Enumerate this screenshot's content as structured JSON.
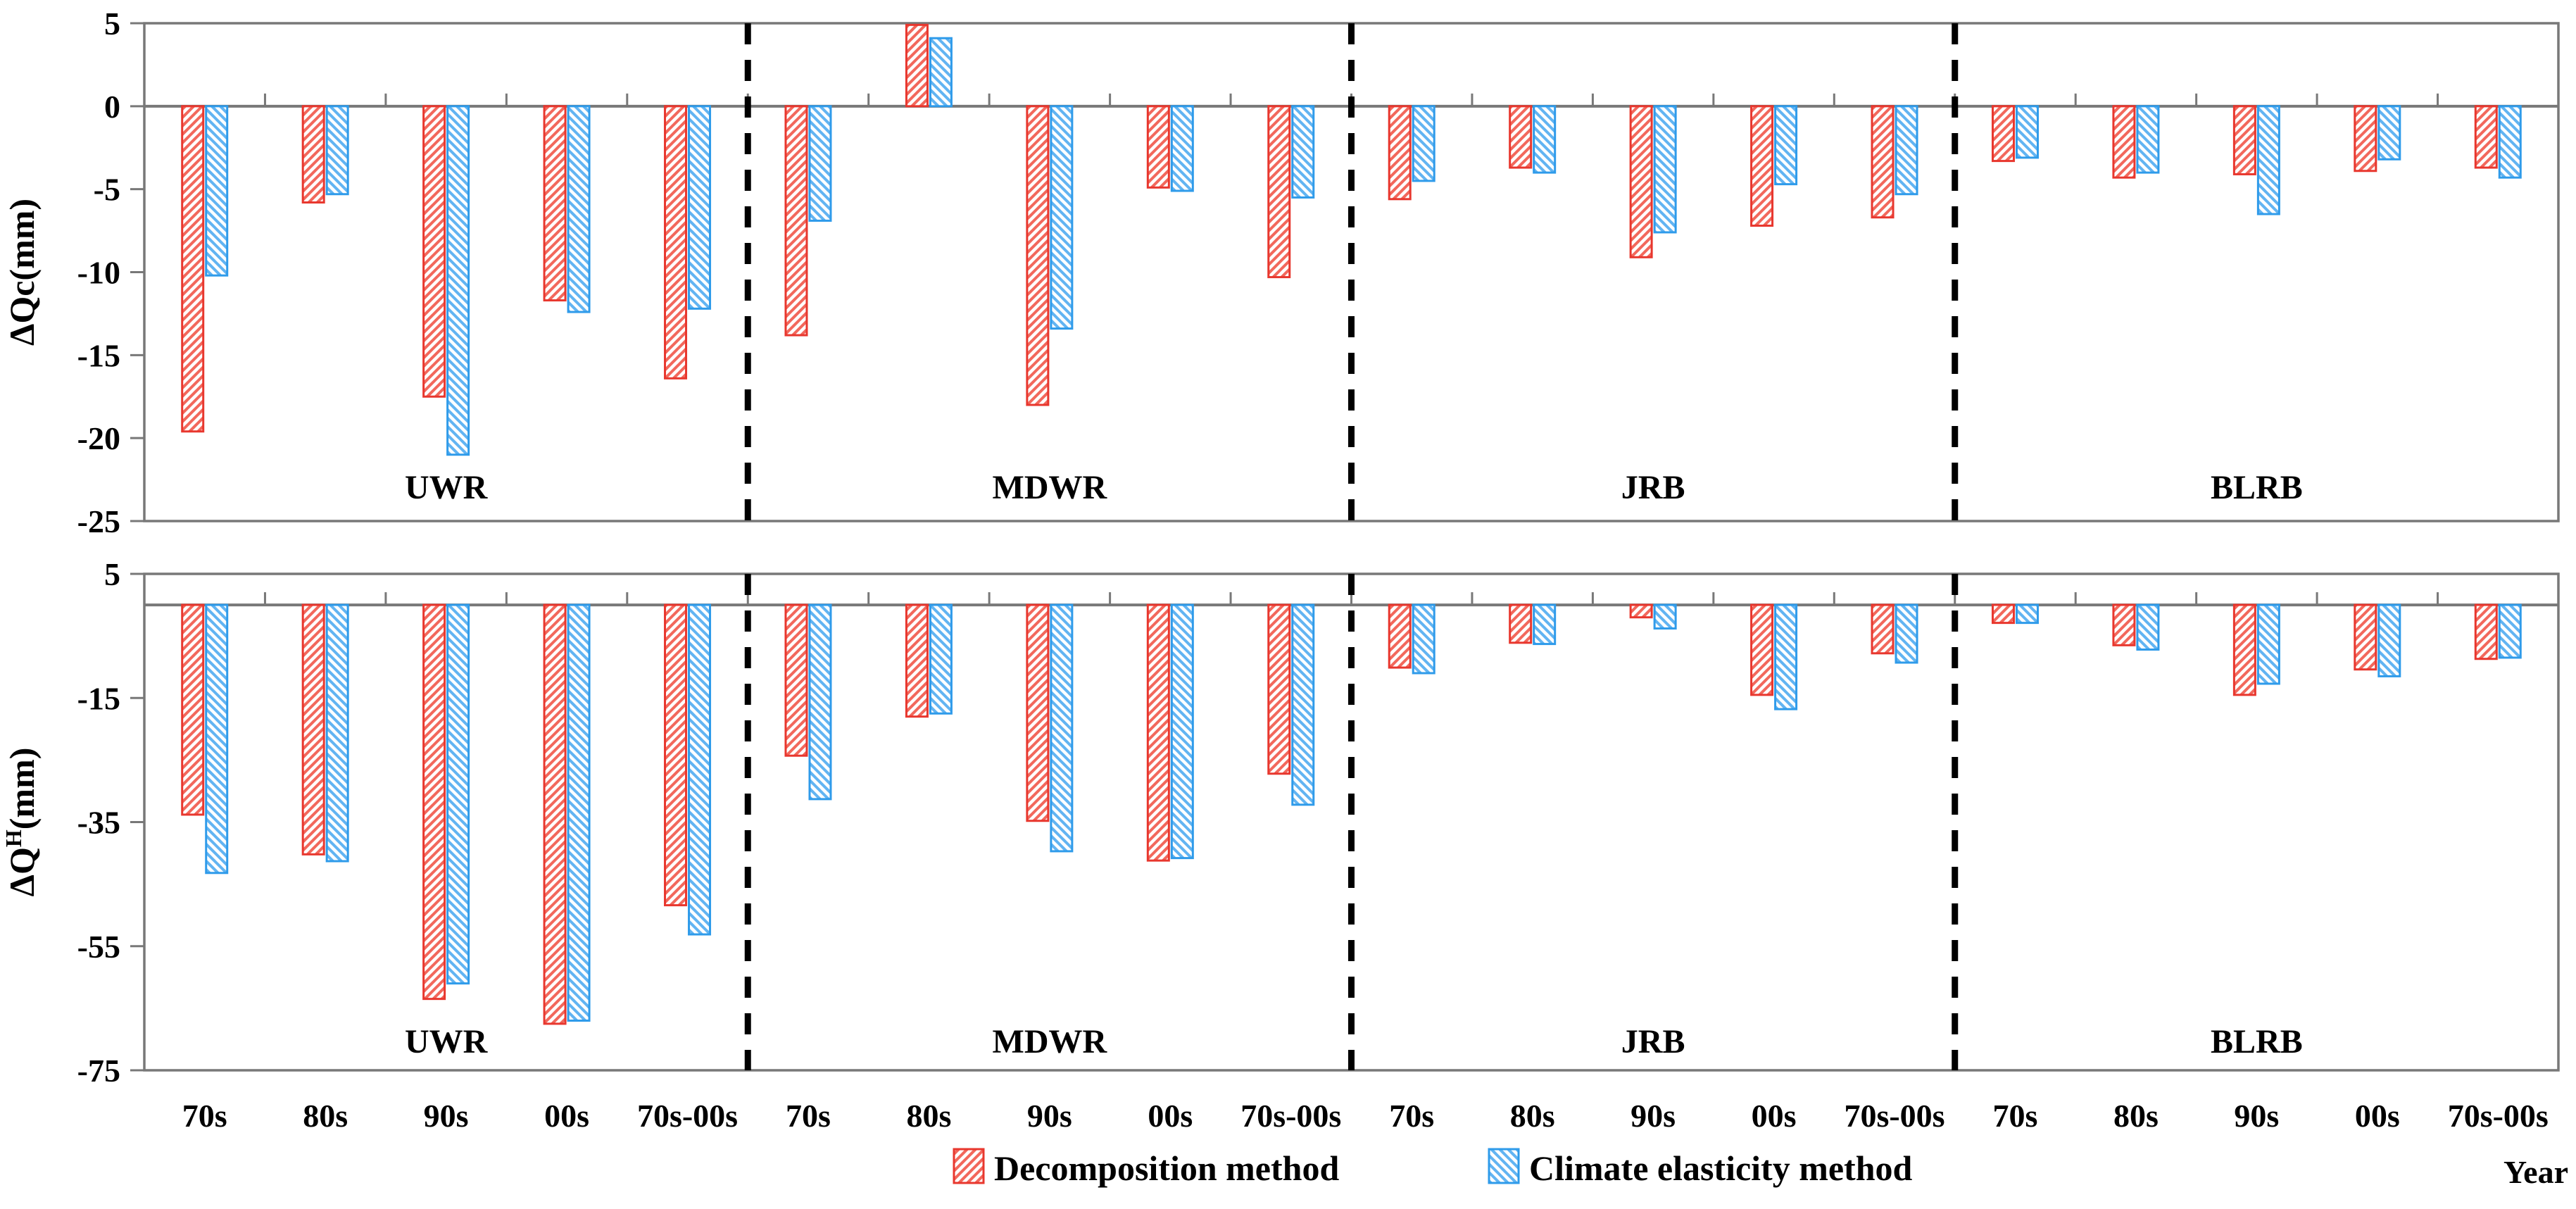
{
  "chart_data": {
    "type": "bar",
    "orientation": "vertical",
    "categories": [
      "70s",
      "80s",
      "90s",
      "00s",
      "70s-00s"
    ],
    "regions": [
      "UWR",
      "MDWR",
      "JRB",
      "BLRB"
    ],
    "series_names": [
      "Decomposition method",
      "Climate elasticity method"
    ],
    "xlabel": "Year",
    "grid": "off",
    "legend_position": "bottom-center",
    "panels": [
      {
        "id": "dQc",
        "ylabel": {
          "prefix": "ΔQc",
          "superscript": "",
          "suffix": "(mm)"
        },
        "ylim": [
          -25,
          5
        ],
        "yticks": [
          5,
          0,
          -5,
          -10,
          -15,
          -20,
          -25
        ],
        "series": [
          {
            "name": "Decomposition method",
            "values": {
              "UWR": [
                -19.6,
                -5.8,
                -17.5,
                -11.7,
                -16.4
              ],
              "MDWR": [
                -13.8,
                4.9,
                -18.0,
                -4.9,
                -10.3
              ],
              "JRB": [
                -5.6,
                -3.7,
                -9.1,
                -7.2,
                -6.7
              ],
              "BLRB": [
                -3.3,
                -4.3,
                -4.1,
                -3.9,
                -3.7
              ]
            }
          },
          {
            "name": "Climate elasticity method",
            "values": {
              "UWR": [
                -10.2,
                -5.3,
                -21.0,
                -12.4,
                -12.2
              ],
              "MDWR": [
                -6.9,
                4.1,
                -13.4,
                -5.1,
                -5.5
              ],
              "JRB": [
                -4.5,
                -4.0,
                -7.6,
                -4.7,
                -5.3
              ],
              "BLRB": [
                -3.1,
                -4.0,
                -6.5,
                -3.2,
                -4.3
              ]
            }
          }
        ]
      },
      {
        "id": "dQH",
        "ylabel": {
          "prefix": "ΔQ",
          "superscript": "H",
          "suffix": "(mm)"
        },
        "ylim": [
          -75,
          5
        ],
        "yticks": [
          5,
          -15,
          -35,
          -55,
          -75
        ],
        "series": [
          {
            "name": "Decomposition method",
            "values": {
              "UWR": [
                -33.8,
                -40.2,
                -63.5,
                -67.5,
                -48.4
              ],
              "MDWR": [
                -24.3,
                -18.0,
                -34.8,
                -41.2,
                -27.2
              ],
              "JRB": [
                -10.1,
                -6.1,
                -2.0,
                -14.5,
                -7.8
              ],
              "BLRB": [
                -2.9,
                -6.5,
                -14.5,
                -10.4,
                -8.7
              ]
            }
          },
          {
            "name": "Climate elasticity method",
            "values": {
              "UWR": [
                -43.2,
                -41.3,
                -61.0,
                -67.0,
                -53.1
              ],
              "MDWR": [
                -31.3,
                -17.5,
                -39.7,
                -40.8,
                -32.2
              ],
              "JRB": [
                -11.0,
                -6.3,
                -3.8,
                -16.8,
                -9.3
              ],
              "BLRB": [
                -2.9,
                -7.2,
                -12.7,
                -11.5,
                -8.5
              ]
            }
          }
        ]
      }
    ]
  },
  "styles": {
    "decomposition": {
      "fill": "#f2685c",
      "stroke": "#e8372e",
      "hatch_direction": "forward-diagonal"
    },
    "climate_elasticity": {
      "fill": "#62b4f2",
      "stroke": "#2f9bea",
      "hatch_direction": "backward-diagonal"
    },
    "hatch_line_color": "#ffffff",
    "axis_color": "#787878",
    "separator_color": "#000000",
    "text_color": "#000000",
    "background": "#ffffff"
  }
}
